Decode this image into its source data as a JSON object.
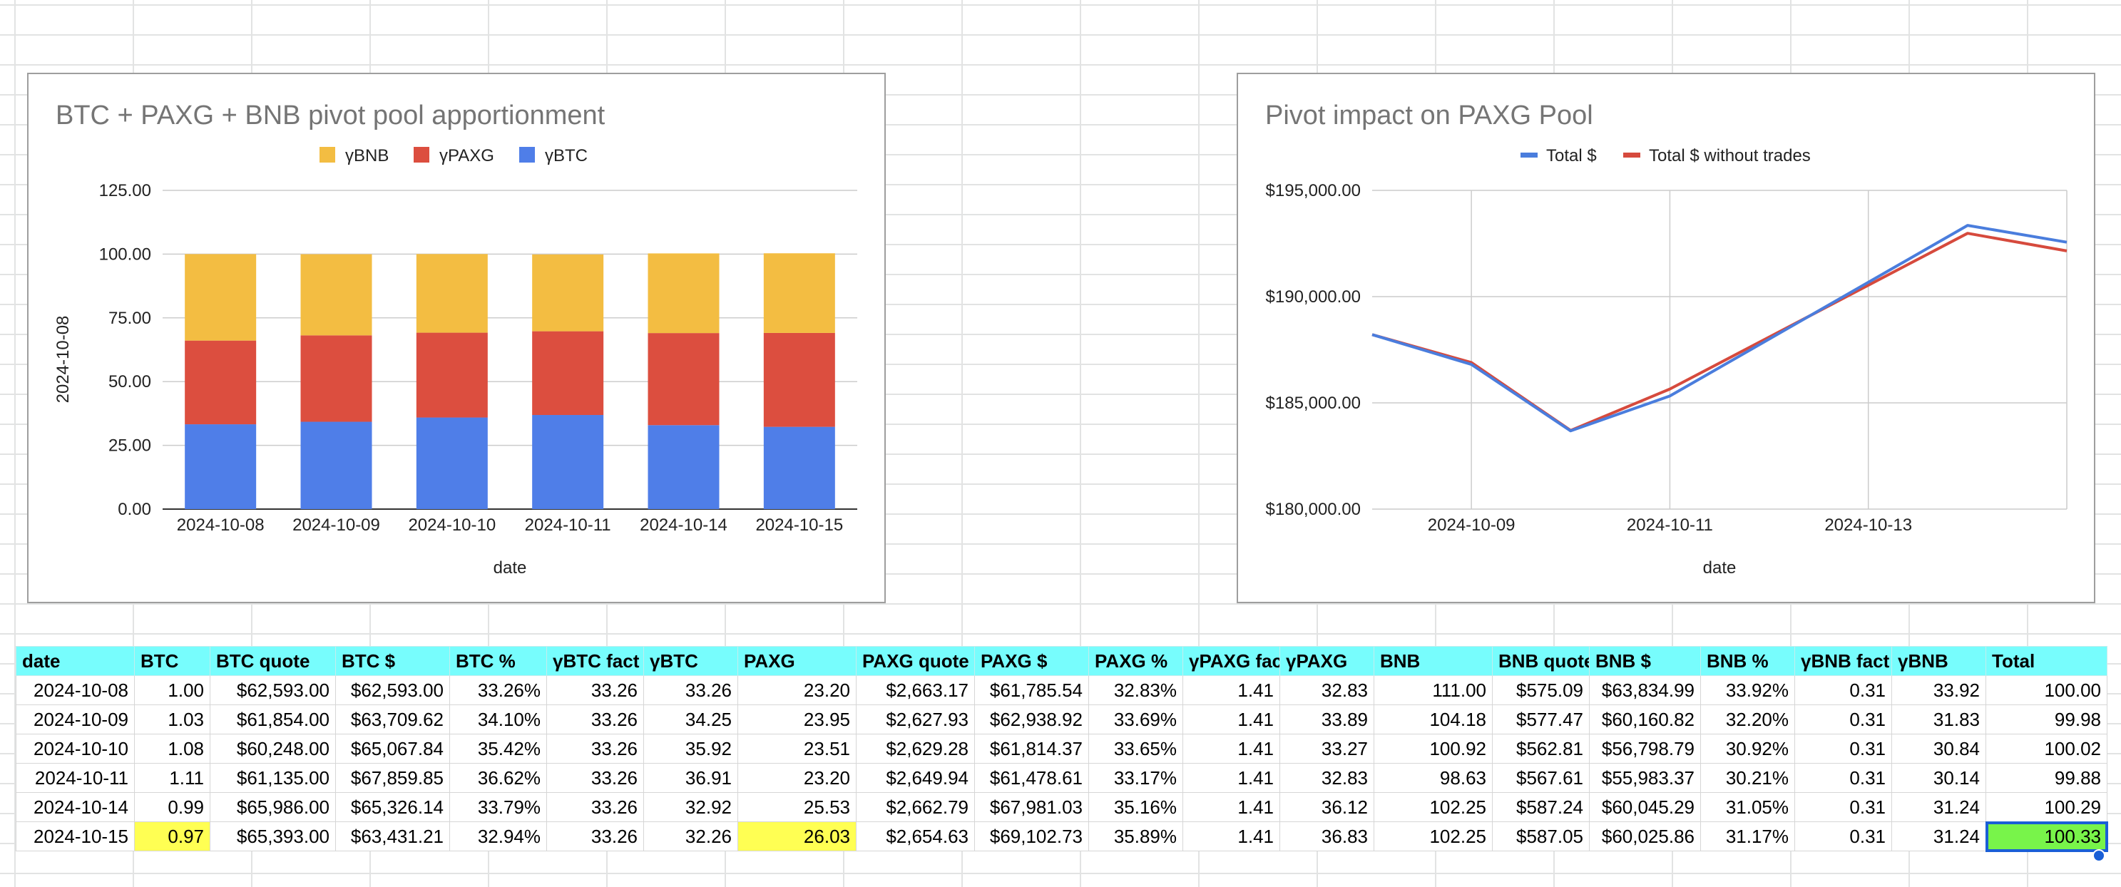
{
  "colors": {
    "btc": "#4f7ee8",
    "paxg": "#dc4e3f",
    "bnb": "#f3bd42",
    "line_total": "#4a7ddd",
    "line_without": "#d64a3d",
    "header_bg": "#77fdfd",
    "highlight_yellow": "#ffff53",
    "highlight_green": "#78f44a",
    "selection": "#1a5fd6"
  },
  "chart_data": [
    {
      "type": "bar",
      "stacked": true,
      "title": "BTC + PAXG + BNB pivot pool apportionment",
      "xlabel": "date",
      "ylabel": "2024-10-08",
      "ylim": [
        0,
        125
      ],
      "yticks": [
        "0.00",
        "25.00",
        "50.00",
        "75.00",
        "100.00",
        "125.00"
      ],
      "legend_position": "top",
      "categories": [
        "2024-10-08",
        "2024-10-09",
        "2024-10-10",
        "2024-10-11",
        "2024-10-14",
        "2024-10-15"
      ],
      "series": [
        {
          "name": "γBTC",
          "color": "#4f7ee8",
          "values": [
            33.26,
            34.25,
            35.92,
            36.91,
            32.92,
            32.26
          ]
        },
        {
          "name": "γPAXG",
          "color": "#dc4e3f",
          "values": [
            32.83,
            33.89,
            33.27,
            32.83,
            36.12,
            36.83
          ]
        },
        {
          "name": "γBNB",
          "color": "#f3bd42",
          "values": [
            33.92,
            31.83,
            30.84,
            30.14,
            31.24,
            31.24
          ]
        }
      ],
      "legend_order": [
        "γBNB",
        "γPAXG",
        "γBTC"
      ]
    },
    {
      "type": "line",
      "title": "Pivot impact on PAXG Pool",
      "xlabel": "date",
      "ylabel": "",
      "ylim": [
        180000,
        195000
      ],
      "yticks": [
        "$180,000.00",
        "$185,000.00",
        "$190,000.00",
        "$195,000.00"
      ],
      "xlim": [
        "2024-10-08",
        "2024-10-15"
      ],
      "xticks": [
        "2024-10-09",
        "2024-10-11",
        "2024-10-13"
      ],
      "legend_position": "top",
      "x": [
        "2024-10-08",
        "2024-10-09",
        "2024-10-10",
        "2024-10-11",
        "2024-10-14",
        "2024-10-15"
      ],
      "series": [
        {
          "name": "Total $",
          "color": "#4a7ddd",
          "values": [
            188212.54,
            186809.36,
            183680.0,
            185321.83,
            193352.46,
            192560.0
          ]
        },
        {
          "name": "Total $ without trades",
          "color": "#d64a3d",
          "values": [
            188212.54,
            186900.0,
            183700.0,
            185650.0,
            192980.0,
            192150.0
          ]
        }
      ]
    }
  ],
  "table": {
    "headers": [
      "date",
      "BTC",
      "BTC quote",
      "BTC $",
      "BTC %",
      "γBTC fact",
      "γBTC",
      "PAXG",
      "PAXG quote",
      "PAXG $",
      "PAXG %",
      "γPAXG fac",
      "γPAXG",
      "BNB",
      "BNB quote",
      "BNB $",
      "BNB %",
      "γBNB fact",
      "γBNB",
      "Total"
    ],
    "rows": [
      [
        "2024-10-08",
        "1.00",
        "$62,593.00",
        "$62,593.00",
        "33.26%",
        "33.26",
        "33.26",
        "23.20",
        "$2,663.17",
        "$61,785.54",
        "32.83%",
        "1.41",
        "32.83",
        "111.00",
        "$575.09",
        "$63,834.99",
        "33.92%",
        "0.31",
        "33.92",
        "100.00"
      ],
      [
        "2024-10-09",
        "1.03",
        "$61,854.00",
        "$63,709.62",
        "34.10%",
        "33.26",
        "34.25",
        "23.95",
        "$2,627.93",
        "$62,938.92",
        "33.69%",
        "1.41",
        "33.89",
        "104.18",
        "$577.47",
        "$60,160.82",
        "32.20%",
        "0.31",
        "31.83",
        "99.98"
      ],
      [
        "2024-10-10",
        "1.08",
        "$60,248.00",
        "$65,067.84",
        "35.42%",
        "33.26",
        "35.92",
        "23.51",
        "$2,629.28",
        "$61,814.37",
        "33.65%",
        "1.41",
        "33.27",
        "100.92",
        "$562.81",
        "$56,798.79",
        "30.92%",
        "0.31",
        "30.84",
        "100.02"
      ],
      [
        "2024-10-11",
        "1.11",
        "$61,135.00",
        "$67,859.85",
        "36.62%",
        "33.26",
        "36.91",
        "23.20",
        "$2,649.94",
        "$61,478.61",
        "33.17%",
        "1.41",
        "32.83",
        "98.63",
        "$567.61",
        "$55,983.37",
        "30.21%",
        "0.31",
        "30.14",
        "99.88"
      ],
      [
        "2024-10-14",
        "0.99",
        "$65,986.00",
        "$65,326.14",
        "33.79%",
        "33.26",
        "32.92",
        "25.53",
        "$2,662.79",
        "$67,981.03",
        "35.16%",
        "1.41",
        "36.12",
        "102.25",
        "$587.24",
        "$60,045.29",
        "31.05%",
        "0.31",
        "31.24",
        "100.29"
      ],
      [
        "2024-10-15",
        "0.97",
        "$65,393.00",
        "$63,431.21",
        "32.94%",
        "33.26",
        "32.26",
        "26.03",
        "$2,654.63",
        "$69,102.73",
        "35.89%",
        "1.41",
        "36.83",
        "102.25",
        "$587.05",
        "$60,025.86",
        "31.17%",
        "0.31",
        "31.24",
        "100.33"
      ]
    ]
  }
}
